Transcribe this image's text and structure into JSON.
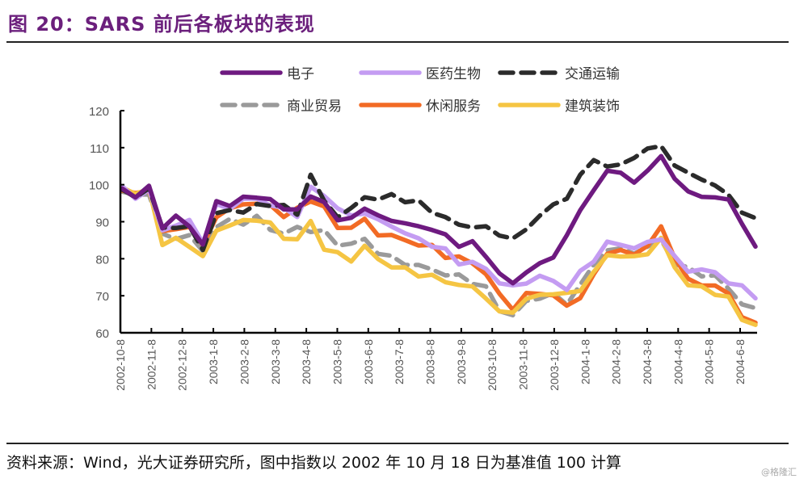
{
  "header": {
    "title": "图 20：SARS 前后各板块的表现"
  },
  "footer": {
    "source": "资料来源：Wind，光大证券研究所，图中指数以 2002 年 10 月 18 日为基准值 100 计算",
    "watermark": "@格隆汇"
  },
  "chart_data": {
    "type": "line",
    "title": "SARS 前后各板块的表现",
    "xlabel": "",
    "ylabel": "",
    "ylim": [
      60,
      120
    ],
    "yticks": [
      60,
      70,
      80,
      90,
      100,
      110,
      120
    ],
    "grid": false,
    "legend_position": "top",
    "x": [
      "2002-10-8",
      "2002-11-8",
      "2002-12-8",
      "2003-1-8",
      "2003-2-8",
      "2003-3-8",
      "2003-4-8",
      "2003-5-8",
      "2003-6-8",
      "2003-7-8",
      "2003-8-8",
      "2003-9-8",
      "2003-10-8",
      "2003-11-8",
      "2003-12-8",
      "2004-1-8",
      "2004-2-8",
      "2004-3-8",
      "2004-4-8",
      "2004-5-8",
      "2004-6-8"
    ],
    "x_sample_points": [
      "2002-10-18",
      "2002-11-1",
      "2002-11-8",
      "2002-11-22",
      "2002-12-8",
      "2002-12-22",
      "2003-1-8",
      "2003-1-15",
      "2003-2-1",
      "2003-2-8",
      "2003-2-22",
      "2003-3-8",
      "2003-3-22",
      "2003-4-8",
      "2003-4-15",
      "2003-4-22",
      "2003-5-8",
      "2003-5-22",
      "2003-6-8",
      "2003-6-22",
      "2003-7-8",
      "2003-7-22",
      "2003-8-8",
      "2003-8-22",
      "2003-9-8",
      "2003-9-22",
      "2003-10-8",
      "2003-10-22",
      "2003-11-8",
      "2003-11-15",
      "2003-11-22",
      "2003-12-8",
      "2003-12-22",
      "2004-1-8",
      "2004-1-22",
      "2004-2-8",
      "2004-2-22",
      "2004-3-8",
      "2004-3-22",
      "2004-4-8",
      "2004-4-15",
      "2004-4-22",
      "2004-5-8",
      "2004-5-22",
      "2004-6-8",
      "2004-6-15",
      "2004-6-22",
      "2004-6-30"
    ],
    "series": [
      {
        "name": "电子",
        "color": "#6e1a80",
        "dash": "solid",
        "values": [
          99,
          97,
          99,
          89,
          91,
          89,
          84,
          95,
          95,
          96,
          97,
          96,
          93,
          94,
          96,
          96,
          90,
          91,
          94,
          91,
          91,
          89,
          89,
          88,
          86,
          84,
          84,
          81,
          76,
          73,
          77,
          78,
          81,
          86,
          93,
          99,
          103,
          104,
          100,
          104,
          108,
          101,
          99,
          96,
          97,
          96,
          89,
          84
        ]
      },
      {
        "name": "医药生物",
        "color": "#c49cf2",
        "dash": "solid",
        "values": [
          99,
          97,
          98,
          88,
          89,
          90,
          85,
          94,
          94,
          96,
          96,
          95,
          93,
          92,
          99,
          97,
          94,
          91,
          93,
          90,
          89,
          87,
          85,
          84,
          82,
          79,
          79,
          77,
          74,
          72,
          74,
          75,
          74,
          72,
          76,
          80,
          84,
          84,
          83,
          84,
          86,
          80,
          77,
          77,
          76,
          74,
          72,
          70
        ]
      },
      {
        "name": "交通运输",
        "color": "#2b2b2b",
        "dash": "dash",
        "values": [
          98,
          97,
          99,
          88,
          89,
          88,
          83,
          92,
          93,
          93,
          94,
          95,
          94,
          92,
          103,
          95,
          92,
          93,
          97,
          96,
          97,
          96,
          95,
          93,
          91,
          89,
          89,
          88,
          87,
          85,
          88,
          92,
          94,
          97,
          102,
          107,
          105,
          105,
          108,
          109,
          111,
          105,
          103,
          102,
          99,
          98,
          92,
          91
        ]
      },
      {
        "name": "商业贸易",
        "color": "#9a9a9a",
        "dash": "dash",
        "values": [
          98,
          97,
          98,
          86,
          86,
          86,
          82,
          89,
          90,
          90,
          91,
          88,
          87,
          88,
          88,
          87,
          84,
          84,
          85,
          82,
          80,
          79,
          78,
          77,
          76,
          75,
          74,
          72,
          66,
          65,
          68,
          70,
          70,
          68,
          73,
          78,
          83,
          82,
          82,
          83,
          85,
          79,
          77,
          76,
          75,
          72,
          68,
          66
        ]
      },
      {
        "name": "休闲服务",
        "color": "#f26b25",
        "dash": "solid",
        "values": [
          99,
          97,
          99,
          87,
          88,
          89,
          83,
          92,
          93,
          95,
          95,
          94,
          92,
          93,
          96,
          94,
          88,
          89,
          90,
          87,
          86,
          85,
          84,
          83,
          81,
          80,
          79,
          76,
          70,
          67,
          70,
          71,
          70,
          67,
          70,
          75,
          82,
          82,
          81,
          84,
          88,
          81,
          74,
          73,
          73,
          70,
          65,
          62
        ]
      },
      {
        "name": "建筑装饰",
        "color": "#f5c543",
        "dash": "solid",
        "values": [
          100,
          97,
          99,
          84,
          85,
          84,
          80,
          88,
          89,
          90,
          91,
          89,
          86,
          85,
          90,
          83,
          81,
          80,
          83,
          80,
          78,
          77,
          76,
          75,
          74,
          73,
          72,
          70,
          65,
          66,
          69,
          70,
          71,
          70,
          72,
          76,
          81,
          81,
          80,
          82,
          85,
          78,
          73,
          72,
          71,
          69,
          64,
          62
        ]
      }
    ]
  }
}
